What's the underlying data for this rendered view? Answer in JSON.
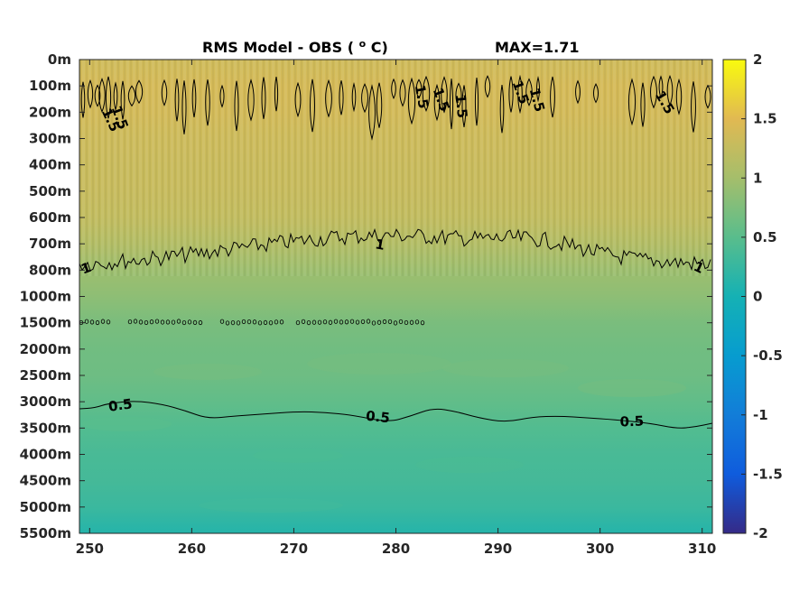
{
  "chart_data": {
    "type": "heatmap",
    "title": "RMS Model - OBS",
    "title_unit_base": "(",
    "title_unit_sup": "o",
    "title_unit_end": "C)",
    "max_label": "MAX=1.71",
    "x_ticks": [
      "250",
      "260",
      "270",
      "280",
      "290",
      "300",
      "310"
    ],
    "x_range": [
      249,
      311
    ],
    "y_ticks": [
      "0m",
      "100m",
      "200m",
      "300m",
      "400m",
      "500m",
      "600m",
      "700m",
      "800m",
      "1000m",
      "1500m",
      "2000m",
      "2500m",
      "3000m",
      "3500m",
      "4000m",
      "4500m",
      "5000m",
      "5500m"
    ],
    "colorbar": {
      "range": [
        -2,
        2
      ],
      "ticks": [
        "2",
        "1.5",
        "1",
        "0.5",
        "0",
        "-0.5",
        "-1",
        "-1.5",
        "-2"
      ],
      "colormap": "parula"
    },
    "profile": [
      {
        "depth": "0m",
        "value": 1.35
      },
      {
        "depth": "100m",
        "value": 1.4
      },
      {
        "depth": "200m",
        "value": 1.38
      },
      {
        "depth": "300m",
        "value": 1.33
      },
      {
        "depth": "400m",
        "value": 1.3
      },
      {
        "depth": "500m",
        "value": 1.28
      },
      {
        "depth": "600m",
        "value": 1.24
      },
      {
        "depth": "700m",
        "value": 1.12
      },
      {
        "depth": "800m",
        "value": 0.95
      },
      {
        "depth": "1000m",
        "value": 0.85
      },
      {
        "depth": "1500m",
        "value": 0.72
      },
      {
        "depth": "2000m",
        "value": 0.66
      },
      {
        "depth": "2500m",
        "value": 0.64
      },
      {
        "depth": "3000m",
        "value": 0.55
      },
      {
        "depth": "3500m",
        "value": 0.45
      },
      {
        "depth": "4000m",
        "value": 0.38
      },
      {
        "depth": "4500m",
        "value": 0.35
      },
      {
        "depth": "5000m",
        "value": 0.28
      },
      {
        "depth": "5500m",
        "value": 0.12
      }
    ],
    "contours": [
      {
        "level": 1.5,
        "depth": "100m-200m",
        "labels": [
          "1.5"
        ]
      },
      {
        "level": 1,
        "depth": "700m-800m",
        "labels": [
          "1"
        ]
      },
      {
        "level": 0.5,
        "depth": "3000m-3500m",
        "labels": [
          "0.5",
          "0.5",
          "0.5"
        ]
      }
    ]
  }
}
